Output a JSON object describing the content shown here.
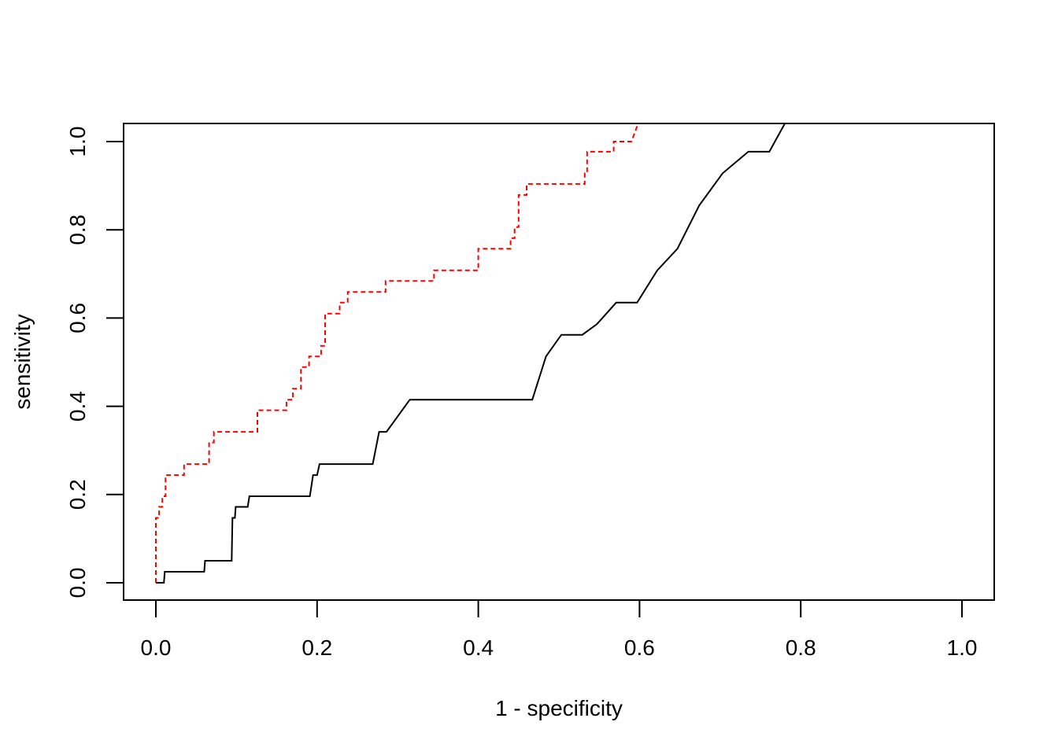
{
  "chart_data": {
    "type": "line",
    "title": "",
    "xlabel": "1 - specificity",
    "ylabel": "sensitivity",
    "xlim": [
      0.0,
      1.0
    ],
    "ylim": [
      0.0,
      1.0
    ],
    "x_ticks": [
      "0.0",
      "0.2",
      "0.4",
      "0.6",
      "0.8",
      "1.0"
    ],
    "y_ticks": [
      "0.0",
      "0.2",
      "0.4",
      "0.6",
      "0.8",
      "1.0"
    ],
    "grid": false,
    "legend": "none",
    "series": [
      {
        "style": "solid",
        "color": "#000000",
        "points": [
          [
            0.0,
            0.0
          ],
          [
            0.01,
            0.0
          ],
          [
            0.011,
            0.025
          ],
          [
            0.06,
            0.025
          ],
          [
            0.061,
            0.05
          ],
          [
            0.094,
            0.05
          ],
          [
            0.095,
            0.147
          ],
          [
            0.098,
            0.147
          ],
          [
            0.099,
            0.172
          ],
          [
            0.114,
            0.172
          ],
          [
            0.116,
            0.196
          ],
          [
            0.191,
            0.196
          ],
          [
            0.195,
            0.244
          ],
          [
            0.2,
            0.244
          ],
          [
            0.203,
            0.269
          ],
          [
            0.269,
            0.269
          ],
          [
            0.277,
            0.342
          ],
          [
            0.286,
            0.342
          ],
          [
            0.296,
            0.367
          ],
          [
            0.315,
            0.415
          ],
          [
            0.467,
            0.415
          ],
          [
            0.484,
            0.513
          ],
          [
            0.503,
            0.562
          ],
          [
            0.529,
            0.562
          ],
          [
            0.547,
            0.586
          ],
          [
            0.571,
            0.635
          ],
          [
            0.597,
            0.635
          ],
          [
            0.622,
            0.708
          ],
          [
            0.647,
            0.757
          ],
          [
            0.674,
            0.855
          ],
          [
            0.703,
            0.928
          ],
          [
            0.735,
            0.977
          ],
          [
            0.761,
            0.977
          ],
          [
            0.78,
            1.04
          ]
        ]
      },
      {
        "style": "dashed",
        "color": "#ff0000",
        "points": [
          [
            0.0,
            0.0
          ],
          [
            0.0,
            0.147
          ],
          [
            0.004,
            0.147
          ],
          [
            0.004,
            0.172
          ],
          [
            0.008,
            0.172
          ],
          [
            0.008,
            0.196
          ],
          [
            0.012,
            0.196
          ],
          [
            0.012,
            0.244
          ],
          [
            0.035,
            0.244
          ],
          [
            0.035,
            0.269
          ],
          [
            0.066,
            0.269
          ],
          [
            0.066,
            0.318
          ],
          [
            0.072,
            0.318
          ],
          [
            0.072,
            0.342
          ],
          [
            0.126,
            0.342
          ],
          [
            0.126,
            0.391
          ],
          [
            0.162,
            0.391
          ],
          [
            0.162,
            0.415
          ],
          [
            0.17,
            0.415
          ],
          [
            0.17,
            0.44
          ],
          [
            0.18,
            0.44
          ],
          [
            0.18,
            0.489
          ],
          [
            0.19,
            0.489
          ],
          [
            0.19,
            0.513
          ],
          [
            0.205,
            0.513
          ],
          [
            0.205,
            0.537
          ],
          [
            0.21,
            0.537
          ],
          [
            0.21,
            0.61
          ],
          [
            0.228,
            0.61
          ],
          [
            0.228,
            0.635
          ],
          [
            0.238,
            0.635
          ],
          [
            0.238,
            0.659
          ],
          [
            0.285,
            0.659
          ],
          [
            0.285,
            0.684
          ],
          [
            0.345,
            0.684
          ],
          [
            0.345,
            0.708
          ],
          [
            0.4,
            0.708
          ],
          [
            0.4,
            0.757
          ],
          [
            0.44,
            0.757
          ],
          [
            0.44,
            0.781
          ],
          [
            0.445,
            0.781
          ],
          [
            0.445,
            0.806
          ],
          [
            0.45,
            0.806
          ],
          [
            0.45,
            0.879
          ],
          [
            0.46,
            0.879
          ],
          [
            0.46,
            0.904
          ],
          [
            0.532,
            0.904
          ],
          [
            0.532,
            0.928
          ],
          [
            0.535,
            0.928
          ],
          [
            0.535,
            0.977
          ],
          [
            0.568,
            0.977
          ],
          [
            0.568,
            1.0
          ],
          [
            0.59,
            1.0
          ],
          [
            0.598,
            1.04
          ]
        ]
      }
    ]
  }
}
